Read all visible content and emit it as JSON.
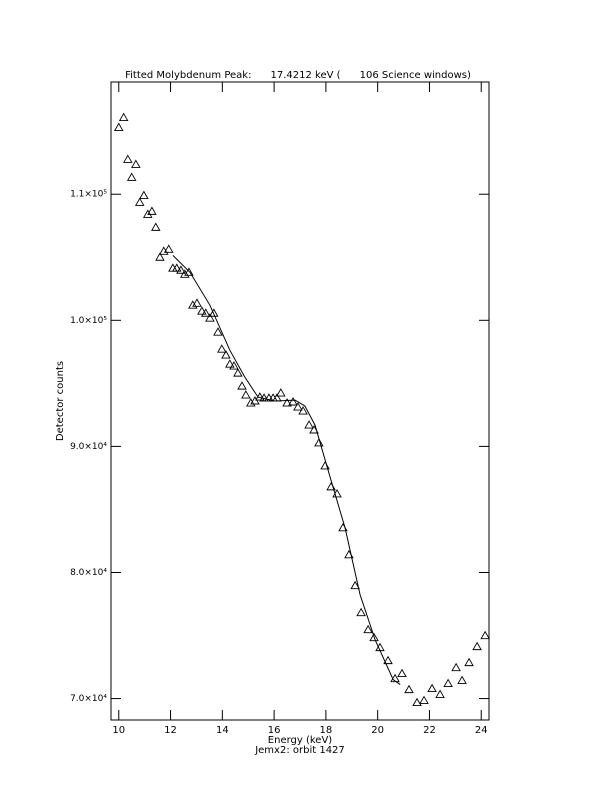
{
  "chart_data": {
    "type": "scatter",
    "title": "Fitted Molybdenum Peak:      17.4212 keV (      106 Science windows)",
    "x_label": "Energy (keV)",
    "subtitle": "Jemx2: orbit 1427",
    "y_label": "Detector counts",
    "xlim": [
      9.7,
      24.3
    ],
    "xticks": [
      10,
      12,
      14,
      16,
      18,
      20,
      22,
      24
    ],
    "ylim": [
      68300,
      118900
    ],
    "yticks": [
      {
        "value": 70000,
        "label": "7.0×10⁴"
      },
      {
        "value": 80000,
        "label": "8.0×10⁴"
      },
      {
        "value": 90000,
        "label": "9.0×10⁴"
      },
      {
        "value": 100000,
        "label": "1.0×10⁵"
      },
      {
        "value": 110000,
        "label": "1.1×10⁵"
      }
    ],
    "series": [
      {
        "type": "scatter",
        "color": "#000000",
        "x": [
          10.0,
          10.19,
          10.35,
          10.5,
          10.66,
          10.81,
          10.97,
          11.12,
          11.28,
          11.43,
          11.59,
          11.74,
          11.93,
          12.09,
          12.24,
          12.4,
          12.55,
          12.71,
          12.86,
          13.02,
          13.21,
          13.36,
          13.52,
          13.67,
          13.83,
          13.98,
          14.14,
          14.29,
          14.45,
          14.6,
          14.76,
          14.91,
          15.1,
          15.26,
          15.45,
          15.61,
          15.8,
          15.96,
          16.11,
          16.26,
          16.5,
          16.73,
          16.92,
          17.12,
          17.35,
          17.54,
          17.73,
          17.97,
          18.2,
          18.43,
          18.66,
          18.89,
          19.13,
          19.36,
          19.63,
          19.86,
          20.09,
          20.4,
          20.67,
          20.94,
          21.21,
          21.52,
          21.79,
          22.1,
          22.41,
          22.72,
          23.03,
          23.26,
          23.53,
          23.84,
          24.15
        ],
        "values": [
          115290,
          116080,
          112760,
          111330,
          112360,
          109350,
          109900,
          108400,
          108640,
          107370,
          105000,
          105470,
          105630,
          104130,
          104130,
          103970,
          103650,
          103810,
          101200,
          101350,
          100720,
          100560,
          100170,
          100560,
          99060,
          97710,
          97240,
          96520,
          96370,
          95810,
          94780,
          94070,
          93440,
          93600,
          93910,
          93830,
          93830,
          93830,
          93830,
          94230,
          93440,
          93520,
          93120,
          92800,
          91690,
          91300,
          90270,
          88450,
          86790,
          86230,
          83540,
          81400,
          78950,
          76810,
          75460,
          74830,
          74040,
          73010,
          71580,
          71980,
          70710,
          69680,
          69840,
          70790,
          70320,
          71190,
          72450,
          71430,
          72850,
          74120,
          74990
        ]
      },
      {
        "type": "line",
        "color": "#000000",
        "x": [
          12.09,
          12.75,
          13.52,
          14.29,
          14.87,
          15.38,
          16.03,
          16.81,
          17.19,
          17.58,
          18.16,
          18.74,
          19.32,
          19.9,
          20.6,
          20.87
        ],
        "values": [
          105150,
          103810,
          101200,
          97630,
          95490,
          93910,
          93600,
          93670,
          93200,
          91690,
          87580,
          83540,
          78240,
          74670,
          71500,
          71110
        ]
      }
    ]
  }
}
